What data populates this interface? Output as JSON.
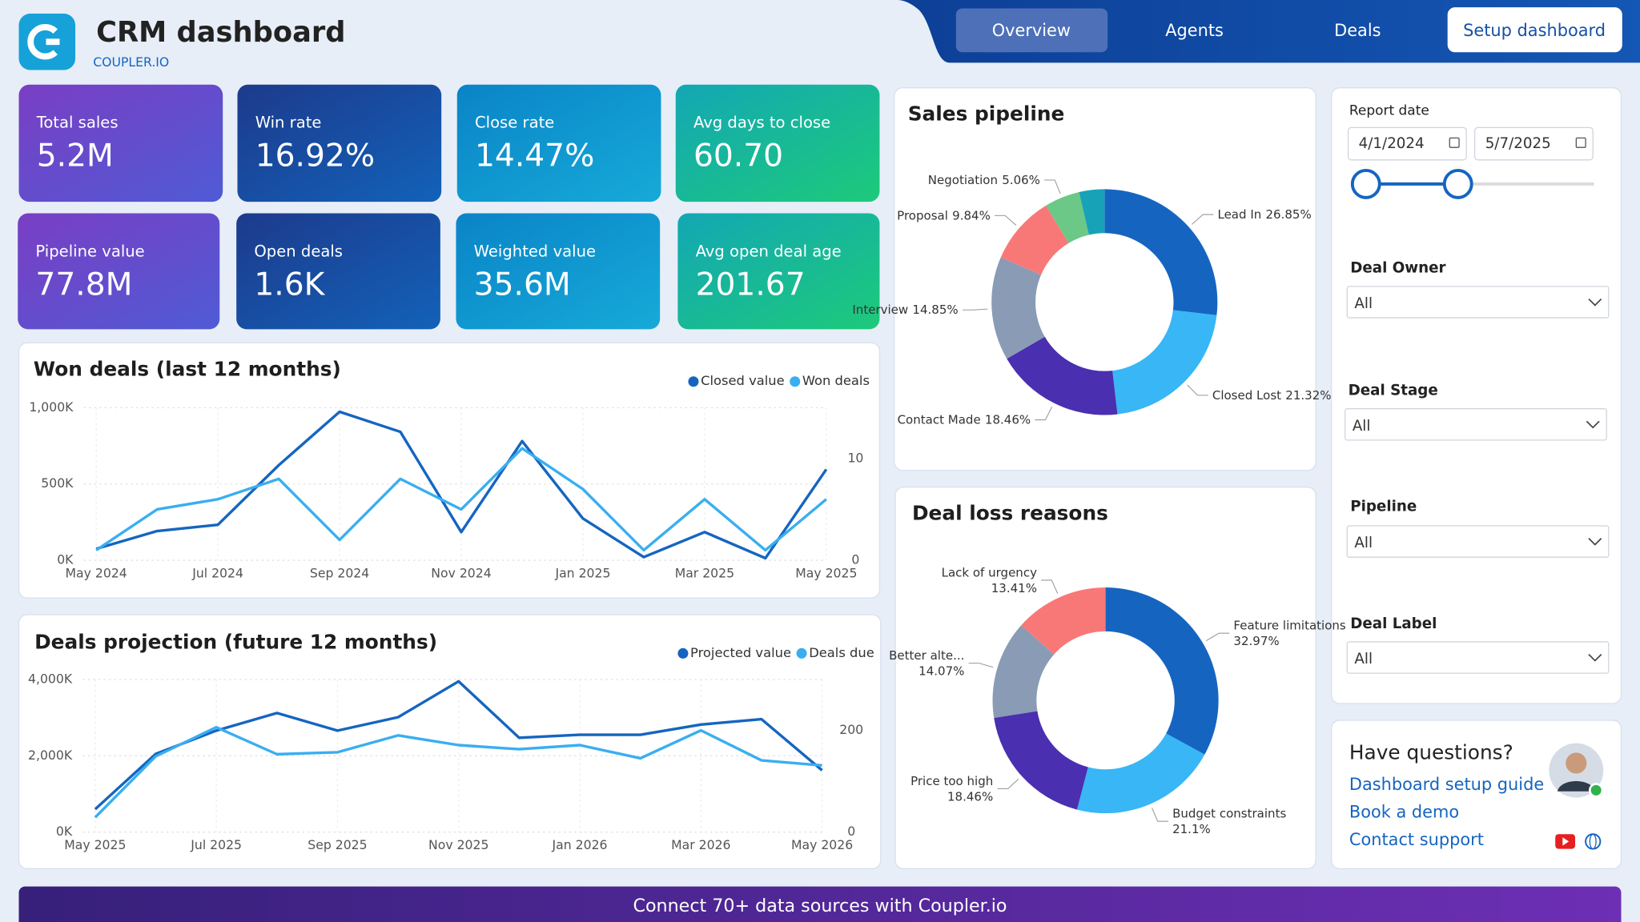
{
  "header": {
    "title": "CRM dashboard",
    "brand": "COUPLER.IO"
  },
  "nav": {
    "items": [
      "Overview",
      "Agents",
      "Deals"
    ],
    "setup": "Setup dashboard"
  },
  "kpis": [
    {
      "label": "Total sales",
      "value": "5.2M"
    },
    {
      "label": "Win rate",
      "value": "16.92%"
    },
    {
      "label": "Close rate",
      "value": "14.47%"
    },
    {
      "label": "Avg days to close",
      "value": "60.70"
    },
    {
      "label": "Pipeline value",
      "value": "77.8M"
    },
    {
      "label": "Open deals",
      "value": "1.6K"
    },
    {
      "label": "Weighted value",
      "value": "35.6M"
    },
    {
      "label": "Avg open deal age",
      "value": "201.67"
    }
  ],
  "chart_data": [
    {
      "type": "line",
      "title": "Won deals (last 12 months)",
      "categories": [
        "May 2024",
        null,
        "Jul 2024",
        null,
        "Sep 2024",
        null,
        "Nov 2024",
        null,
        "Jan 2025",
        null,
        "Mar 2025",
        null,
        "May 2025"
      ],
      "series": [
        {
          "name": "Closed value",
          "color": "#1565c0",
          "values": [
            75000,
            192000,
            233000,
            623000,
            973000,
            842000,
            185000,
            781000,
            274000,
            21000,
            185000,
            14000,
            596000
          ]
        },
        {
          "name": "Won deals",
          "color": "#3aaef0",
          "axis": "y2",
          "values": [
            1,
            5,
            6,
            8,
            2,
            8,
            5,
            11,
            7,
            1,
            6,
            1,
            6
          ]
        }
      ],
      "ylim": [
        0,
        1000000
      ],
      "yticks": [
        {
          "value": 0,
          "label": "0K"
        },
        {
          "value": 500000,
          "label": "500K"
        },
        {
          "value": 1000000,
          "label": "1,000K"
        }
      ],
      "y2lim": [
        0,
        15
      ],
      "y2ticks": [
        0,
        10
      ],
      "grid": true,
      "legend": "top-right"
    },
    {
      "type": "line",
      "title": "Deals projection (future 12 months)",
      "categories": [
        "May 2025",
        null,
        "Jul 2025",
        null,
        "Sep 2025",
        null,
        "Nov 2025",
        null,
        "Jan 2026",
        null,
        "Mar 2026",
        null,
        "May 2026"
      ],
      "series": [
        {
          "name": "Projected value",
          "color": "#1565c0",
          "values": [
            600000,
            2050000,
            2660000,
            3120000,
            2660000,
            3010000,
            3950000,
            2470000,
            2550000,
            2550000,
            2820000,
            2960000,
            1620000
          ]
        },
        {
          "name": "Deals due",
          "color": "#3aaef0",
          "axis": "y2",
          "values": [
            29,
            149,
            206,
            153,
            157,
            190,
            171,
            163,
            171,
            145,
            200,
            141,
            131
          ]
        }
      ],
      "ylim": [
        0,
        4000000
      ],
      "yticks": [
        {
          "value": 0,
          "label": "0K"
        },
        {
          "value": 2000000,
          "label": "2,000K"
        },
        {
          "value": 4000000,
          "label": "4,000K"
        }
      ],
      "y2lim": [
        0,
        300
      ],
      "y2ticks": [
        0,
        200
      ],
      "grid": true,
      "legend": "top-right"
    },
    {
      "type": "pie",
      "title": "Sales pipeline",
      "categories": [
        "Lead In",
        "Closed Lost",
        "Contact Made",
        "Interview",
        "Proposal",
        "Negotiation",
        null
      ],
      "values": [
        26.85,
        21.32,
        18.46,
        14.85,
        9.84,
        5.06,
        3.62
      ],
      "value_labels": [
        "26.85%",
        "21.32%",
        "18.46%",
        "14.85%",
        "9.84%",
        "5.06%",
        null
      ],
      "colors": [
        "#1565c0",
        "#38b6f5",
        "#4a2fb0",
        "#8a9bb5",
        "#f87878",
        "#6cc886",
        "#17a2b8"
      ]
    },
    {
      "type": "pie",
      "title": "Deal loss reasons",
      "categories": [
        "Feature limitations",
        "Budget constraints",
        "Price too high",
        "Better alte...",
        "Lack of urgency"
      ],
      "values": [
        32.97,
        21.1,
        18.46,
        14.07,
        13.41
      ],
      "value_labels": [
        "32.97%",
        "21.1%",
        "18.46%",
        "14.07%",
        "13.41%"
      ],
      "colors": [
        "#1565c0",
        "#38b6f5",
        "#4a2fb0",
        "#8a9bb5",
        "#f87878"
      ]
    }
  ],
  "filters": {
    "report_date": {
      "label": "Report date",
      "start": "4/1/2024",
      "end": "5/7/2025"
    },
    "dropdowns": [
      {
        "label": "Deal Owner",
        "value": "All"
      },
      {
        "label": "Deal Stage",
        "value": "All"
      },
      {
        "label": "Pipeline",
        "value": "All"
      },
      {
        "label": "Deal Label",
        "value": "All"
      }
    ]
  },
  "help": {
    "title": "Have questions?",
    "links": [
      "Dashboard setup guide",
      "Book a demo",
      "Contact support"
    ]
  },
  "footer": "Connect 70+ data sources with Coupler.io"
}
